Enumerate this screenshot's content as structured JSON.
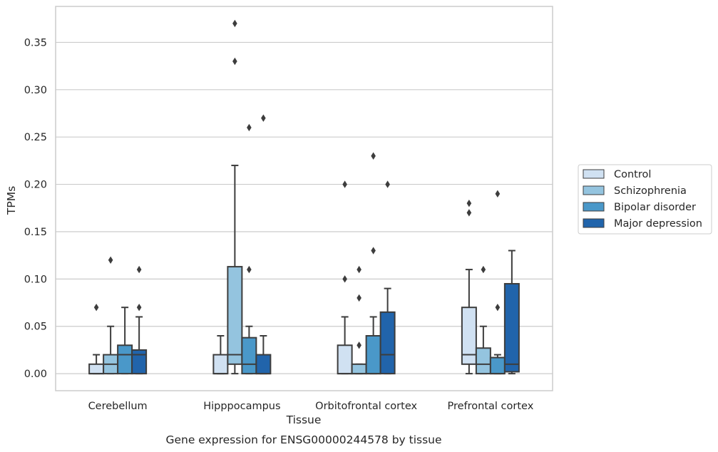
{
  "caption": "Gene expression for ENSG00000244578 by tissue",
  "colors": {
    "grid": "#cccccc",
    "frame": "#cccccc",
    "box_edge": "#3d3d3d",
    "Control": "#d0e1f2",
    "Schizophrenia": "#94c4df",
    "Bipolar disorder": "#4a98c9",
    "Major depression": "#2164ab"
  },
  "chart_data": {
    "type": "box",
    "xlabel": "Tissue",
    "ylabel": "TPMs",
    "ylim": [
      -0.018,
      0.388
    ],
    "yticks": [
      0.0,
      0.05,
      0.1,
      0.15,
      0.2,
      0.25,
      0.3,
      0.35
    ],
    "ytick_labels": [
      "0.00",
      "0.05",
      "0.10",
      "0.15",
      "0.20",
      "0.25",
      "0.30",
      "0.35"
    ],
    "grid": "horizontal",
    "legend_position": "right",
    "categories": [
      "Cerebellum",
      "Hipppocampus",
      "Orbitofrontal cortex",
      "Prefrontal cortex"
    ],
    "series": [
      {
        "name": "Control",
        "boxes": [
          {
            "whislo": 0.0,
            "q1": 0.0,
            "med": 0.0,
            "q3": 0.01,
            "whishi": 0.02,
            "fliers": [
              0.07
            ]
          },
          {
            "whislo": 0.0,
            "q1": 0.0,
            "med": 0.0,
            "q3": 0.02,
            "whishi": 0.04,
            "fliers": []
          },
          {
            "whislo": 0.0,
            "q1": 0.0,
            "med": 0.0,
            "q3": 0.03,
            "whishi": 0.06,
            "fliers": [
              0.1,
              0.2
            ]
          },
          {
            "whislo": 0.0,
            "q1": 0.01,
            "med": 0.02,
            "q3": 0.07,
            "whishi": 0.11,
            "fliers": [
              0.17,
              0.18
            ]
          }
        ]
      },
      {
        "name": "Schizophrenia",
        "boxes": [
          {
            "whislo": 0.0,
            "q1": 0.0,
            "med": 0.01,
            "q3": 0.02,
            "whishi": 0.05,
            "fliers": [
              0.12
            ]
          },
          {
            "whislo": 0.0,
            "q1": 0.01,
            "med": 0.02,
            "q3": 0.113,
            "whishi": 0.22,
            "fliers": [
              0.33,
              0.37
            ]
          },
          {
            "whislo": 0.0,
            "q1": 0.0,
            "med": 0.0,
            "q3": 0.01,
            "whishi": 0.01,
            "fliers": [
              0.03,
              0.08,
              0.11
            ]
          },
          {
            "whislo": 0.0,
            "q1": 0.0,
            "med": 0.01,
            "q3": 0.027,
            "whishi": 0.05,
            "fliers": [
              0.11
            ]
          }
        ]
      },
      {
        "name": "Bipolar disorder",
        "boxes": [
          {
            "whislo": 0.0,
            "q1": 0.0,
            "med": 0.02,
            "q3": 0.03,
            "whishi": 0.07,
            "fliers": []
          },
          {
            "whislo": 0.0,
            "q1": 0.0,
            "med": 0.01,
            "q3": 0.038,
            "whishi": 0.05,
            "fliers": [
              0.11,
              0.26
            ]
          },
          {
            "whislo": 0.0,
            "q1": 0.0,
            "med": 0.0,
            "q3": 0.04,
            "whishi": 0.06,
            "fliers": [
              0.13,
              0.23
            ]
          },
          {
            "whislo": 0.0,
            "q1": 0.0,
            "med": 0.0,
            "q3": 0.017,
            "whishi": 0.02,
            "fliers": [
              0.07,
              0.19
            ]
          }
        ]
      },
      {
        "name": "Major depression",
        "boxes": [
          {
            "whislo": 0.0,
            "q1": 0.0,
            "med": 0.02,
            "q3": 0.025,
            "whishi": 0.06,
            "fliers": [
              0.07,
              0.11
            ]
          },
          {
            "whislo": 0.0,
            "q1": 0.0,
            "med": 0.0,
            "q3": 0.02,
            "whishi": 0.04,
            "fliers": [
              0.27
            ]
          },
          {
            "whislo": 0.0,
            "q1": 0.0,
            "med": 0.02,
            "q3": 0.065,
            "whishi": 0.09,
            "fliers": [
              0.2
            ]
          },
          {
            "whislo": 0.0,
            "q1": 0.002,
            "med": 0.01,
            "q3": 0.095,
            "whishi": 0.13,
            "fliers": []
          }
        ]
      }
    ]
  }
}
